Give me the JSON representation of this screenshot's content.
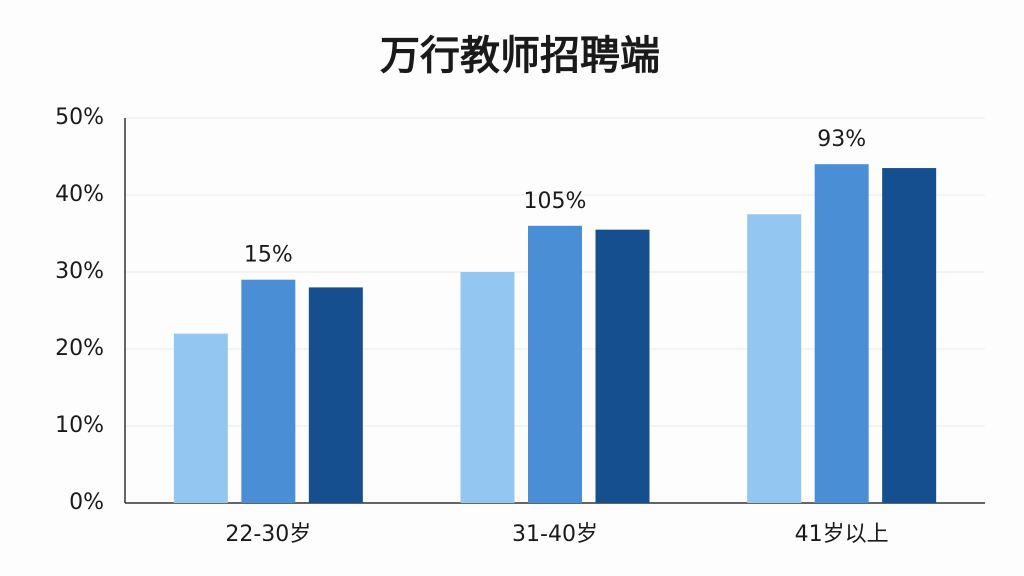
{
  "chart_data": {
    "type": "bar",
    "title": "万行教师招聘端",
    "categories": [
      "22-30岁",
      "31-40岁",
      "41岁以上"
    ],
    "series": [
      {
        "color": "#93c6f0",
        "values": [
          22,
          30,
          37.5
        ]
      },
      {
        "color": "#4a8fd6",
        "values": [
          29,
          36,
          44
        ]
      },
      {
        "color": "#154f8f",
        "values": [
          28,
          35.5,
          43.5
        ]
      }
    ],
    "annotations": [
      "15%",
      "105%",
      "93%"
    ],
    "ylim": [
      0,
      50
    ],
    "yticks": [
      {
        "value": 0,
        "label": "0%"
      },
      {
        "value": 10,
        "label": "10%"
      },
      {
        "value": 20,
        "label": "20%"
      },
      {
        "value": 30,
        "label": "30%"
      },
      {
        "value": 40,
        "label": "40%"
      },
      {
        "value": 50,
        "label": "50%"
      }
    ],
    "grid": true
  }
}
